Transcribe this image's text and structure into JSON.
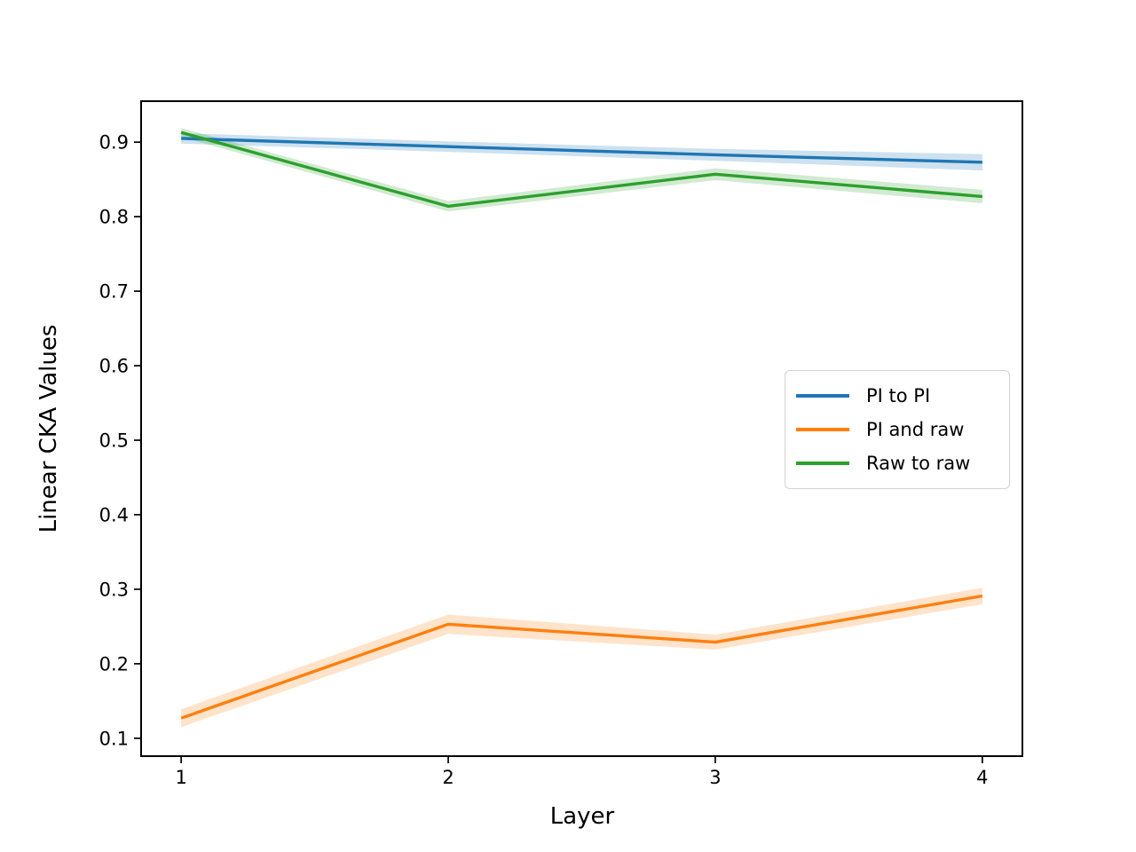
{
  "chart_data": {
    "type": "line",
    "title": "",
    "xlabel": "Layer",
    "ylabel": "Linear CKA Values",
    "x": [
      1,
      2,
      3,
      4
    ],
    "x_tick_labels": [
      "1",
      "2",
      "3",
      "4"
    ],
    "y_tick_values": [
      0.1,
      0.2,
      0.3,
      0.4,
      0.5,
      0.6,
      0.7,
      0.8,
      0.9
    ],
    "y_tick_labels": [
      "0.1",
      "0.2",
      "0.3",
      "0.4",
      "0.5",
      "0.6",
      "0.7",
      "0.8",
      "0.9"
    ],
    "xlim": [
      0.85,
      4.15
    ],
    "ylim": [
      0.076,
      0.955
    ],
    "grid": false,
    "legend_position": "center right",
    "band_opacity": 0.22,
    "axis_color": "#000000",
    "background_color": "#ffffff",
    "series": [
      {
        "name": "PI to PI",
        "color": "#1f77b4",
        "values": [
          0.905,
          0.894,
          0.883,
          0.873
        ],
        "band_halfwidth": [
          0.007,
          0.007,
          0.008,
          0.011
        ]
      },
      {
        "name": "PI and raw",
        "color": "#ff7f0e",
        "values": [
          0.127,
          0.253,
          0.229,
          0.291
        ],
        "band_halfwidth": [
          0.012,
          0.013,
          0.01,
          0.011
        ]
      },
      {
        "name": "Raw to raw",
        "color": "#2ca02c",
        "values": [
          0.913,
          0.814,
          0.857,
          0.827
        ],
        "band_halfwidth": [
          0.006,
          0.007,
          0.008,
          0.009
        ]
      }
    ]
  }
}
